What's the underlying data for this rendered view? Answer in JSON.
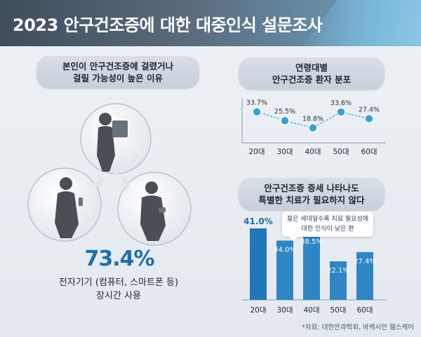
{
  "title": "2023 안구건조증에 대한 대중인식 설문조사",
  "left_panel": {
    "heading_line1": "본인이 안구건조증에 걸렸거나",
    "heading_line2": "걸릴 가능성이 높은 이유",
    "big_stat": "73.4%",
    "desc_line1": "전자기기 (컴퓨터, 스마트폰 등)",
    "desc_line2": "장시간 사용"
  },
  "right_top": {
    "heading_line1": "연령대별",
    "heading_line2": "안구건조증 환자 분포"
  },
  "right_bottom": {
    "heading_line1": "안구건조증 증세 나타나도",
    "heading_line2": "특별한 치료가 필요하지 않다",
    "callout_line1": "젊은 세대일수록 치료 필요성에",
    "callout_line2": "대한 인식이 낮은 편"
  },
  "source": "*자료: 대한안과학회, 바케시안 헬스케어",
  "colors": {
    "accent": "#1e6fa8",
    "dot": "#3aa0d8",
    "bar": "#2f86c4"
  },
  "chart_data": [
    {
      "type": "line",
      "categories": [
        "20대",
        "30대",
        "40대",
        "50대",
        "60대"
      ],
      "values": [
        33.7,
        25.5,
        18.8,
        33.6,
        27.4
      ],
      "labels": [
        "33.7%",
        "25.5%",
        "18.8%",
        "33.6%",
        "27.4%"
      ],
      "title": "연령대별 안구건조증 환자 분포",
      "ylim": [
        10,
        40
      ]
    },
    {
      "type": "bar",
      "categories": [
        "20대",
        "30대",
        "40대",
        "50대",
        "60대"
      ],
      "values": [
        41.0,
        34.0,
        38.5,
        22.1,
        27.4
      ],
      "labels": [
        "41.0%",
        "34.0%",
        "38.5%",
        "22.1%",
        "27.4%"
      ],
      "title": "안구건조증 증세 나타나도 특별한 치료가 필요하지 않다",
      "ylim": [
        0,
        45
      ]
    }
  ]
}
